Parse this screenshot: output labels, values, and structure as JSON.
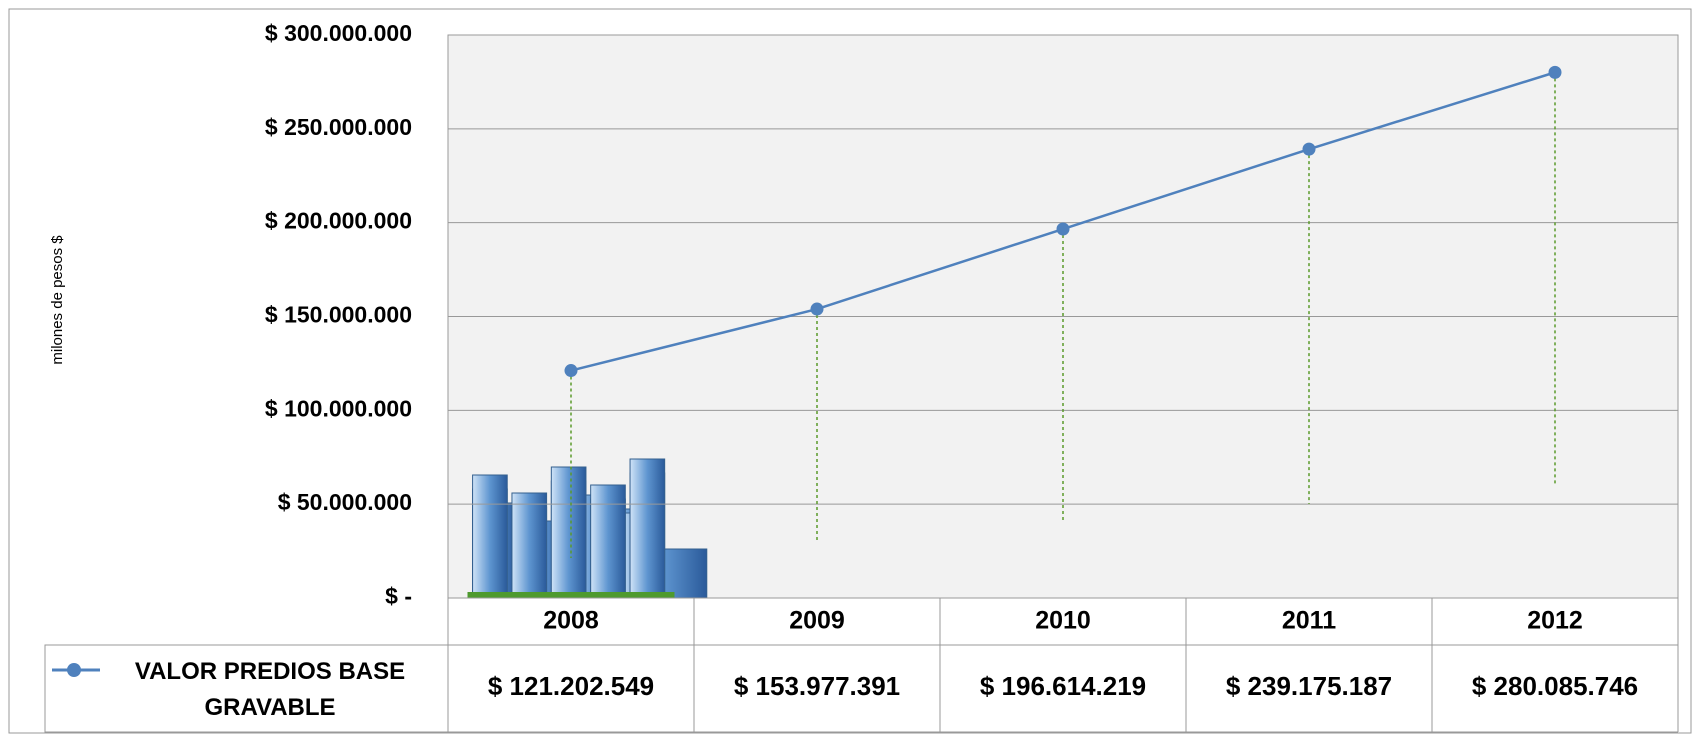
{
  "chart_data": {
    "type": "line",
    "y_label": "milones de pesos $",
    "categories": [
      "2008",
      "2009",
      "2010",
      "2011",
      "2012"
    ],
    "series": [
      {
        "name": "VALOR PREDIOS BASE GRAVABLE",
        "color": "#4f81bd",
        "values": [
          121202549,
          153977391,
          196614219,
          239175187,
          280085746
        ],
        "value_labels": [
          "$ 121.202.549",
          "$ 153.977.391",
          "$ 196.614.219",
          "$ 239.175.187",
          "$ 280.085.746"
        ]
      }
    ],
    "ylim": [
      0,
      300000000
    ],
    "yticks": [
      {
        "value": 0,
        "label": "$ -"
      },
      {
        "value": 50000000,
        "label": "$ 50.000.000"
      },
      {
        "value": 100000000,
        "label": "$ 100.000.000"
      },
      {
        "value": 150000000,
        "label": "$ 150.000.000"
      },
      {
        "value": 200000000,
        "label": "$ 200.000.000"
      },
      {
        "value": 250000000,
        "label": "$ 250.000.000"
      },
      {
        "value": 300000000,
        "label": "$ 300.000.000"
      }
    ],
    "grid": true
  }
}
